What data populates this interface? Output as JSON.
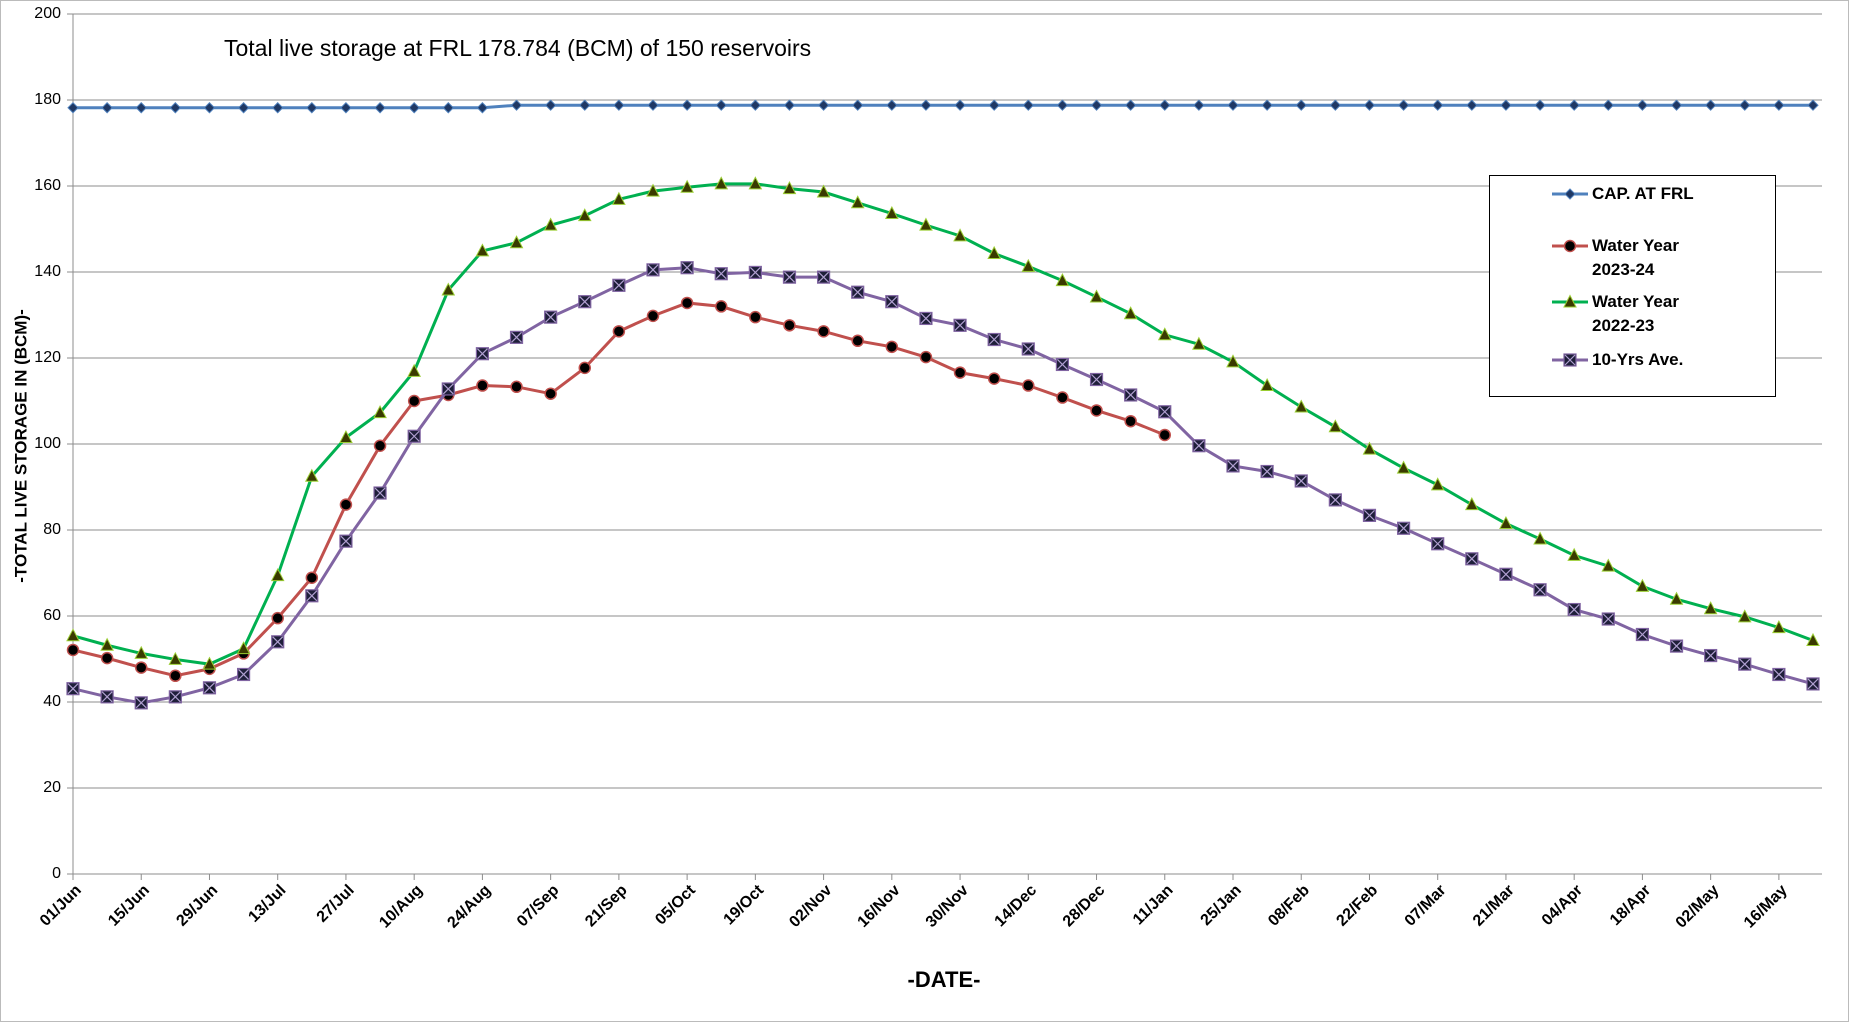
{
  "chart_data": {
    "type": "line",
    "title": "Total live storage at FRL 178.784 (BCM) of 150 reservoirs",
    "x_label": "-DATE-",
    "y_label": "-TOTAL LIVE STORAGE IN (BCM)-",
    "categories": [
      "01/Jun",
      null,
      "15/Jun",
      null,
      "29/Jun",
      null,
      "13/Jul",
      null,
      "27/Jul",
      null,
      "10/Aug",
      null,
      "24/Aug",
      null,
      "07/Sep",
      null,
      "21/Sep",
      null,
      "05/Oct",
      null,
      "19/Oct",
      null,
      "02/Nov",
      null,
      "16/Nov",
      null,
      "30/Nov",
      null,
      "14/Dec",
      null,
      "28/Dec",
      null,
      "11/Jan",
      null,
      "25/Jan",
      null,
      "08/Feb",
      null,
      "22/Feb",
      null,
      "07/Mar",
      null,
      "21/Mar",
      null,
      "04/Apr",
      null,
      "18/Apr",
      null,
      "02/May",
      null,
      "16/May",
      null
    ],
    "series": [
      {
        "name": "CAP. AT FRL",
        "color": "#4f81bd",
        "marker": "diamond",
        "values": [
          178.2,
          178.2,
          178.2,
          178.2,
          178.2,
          178.2,
          178.2,
          178.2,
          178.2,
          178.2,
          178.2,
          178.2,
          178.2,
          178.784,
          178.784,
          178.784,
          178.784,
          178.784,
          178.784,
          178.784,
          178.784,
          178.784,
          178.784,
          178.784,
          178.784,
          178.784,
          178.784,
          178.784,
          178.784,
          178.784,
          178.784,
          178.784,
          178.784,
          178.784,
          178.784,
          178.784,
          178.784,
          178.784,
          178.784,
          178.784,
          178.784,
          178.784,
          178.784,
          178.784,
          178.784,
          178.784,
          178.784,
          178.784,
          178.784,
          178.784,
          178.784,
          178.784
        ]
      },
      {
        "name": "Water Year 2023-24",
        "color": "#c0504d",
        "marker": "circle",
        "values": [
          52.1,
          50.2,
          48.0,
          46.1,
          47.7,
          51.3,
          59.5,
          68.9,
          85.9,
          99.6,
          110.0,
          111.4,
          113.6,
          113.3,
          111.7,
          117.7,
          126.2,
          129.8,
          132.8,
          132.0,
          129.5,
          127.6,
          126.2,
          124.0,
          122.6,
          120.2,
          116.6,
          115.2,
          113.6,
          110.8,
          107.8,
          105.3,
          102.1,
          null,
          null,
          null,
          null,
          null,
          null,
          null,
          null,
          null,
          null,
          null,
          null,
          null,
          null,
          null,
          null,
          null,
          null,
          null
        ]
      },
      {
        "name": "Water Year 2022-23",
        "color": "#00b050",
        "marker": "triangle",
        "values": [
          55.4,
          53.2,
          51.3,
          49.9,
          48.8,
          52.4,
          69.4,
          92.5,
          101.5,
          107.3,
          116.9,
          135.8,
          144.9,
          146.8,
          150.9,
          153.1,
          156.9,
          158.8,
          159.7,
          160.5,
          160.5,
          159.4,
          158.6,
          156.1,
          153.6,
          150.9,
          148.4,
          144.3,
          141.3,
          138.0,
          134.2,
          130.3,
          125.4,
          123.2,
          119.1,
          113.6,
          108.6,
          104.0,
          98.8,
          94.4,
          90.5,
          85.9,
          81.5,
          77.9,
          74.1,
          71.6,
          66.9,
          63.9,
          61.7,
          59.8,
          57.3,
          54.3
        ]
      },
      {
        "name": "10-Yrs Ave.",
        "color": "#8064a2",
        "marker": "square-x",
        "values": [
          43.1,
          41.2,
          39.8,
          41.2,
          43.3,
          46.4,
          54.0,
          64.7,
          77.4,
          88.6,
          101.8,
          112.8,
          121.0,
          124.8,
          129.5,
          133.1,
          136.9,
          140.5,
          141.0,
          139.6,
          139.9,
          138.8,
          138.8,
          135.3,
          133.1,
          129.2,
          127.6,
          124.3,
          122.1,
          118.5,
          115.0,
          111.4,
          107.5,
          99.6,
          94.9,
          93.6,
          91.4,
          87.0,
          83.4,
          80.4,
          76.8,
          73.3,
          69.7,
          66.1,
          61.5,
          59.3,
          55.7,
          53.0,
          50.8,
          48.8,
          46.4,
          44.2
        ]
      }
    ],
    "ylim": [
      0,
      200
    ],
    "yticks": [
      0,
      20,
      40,
      60,
      80,
      100,
      120,
      140,
      160,
      180,
      200
    ],
    "grid": true,
    "legend": "right"
  }
}
